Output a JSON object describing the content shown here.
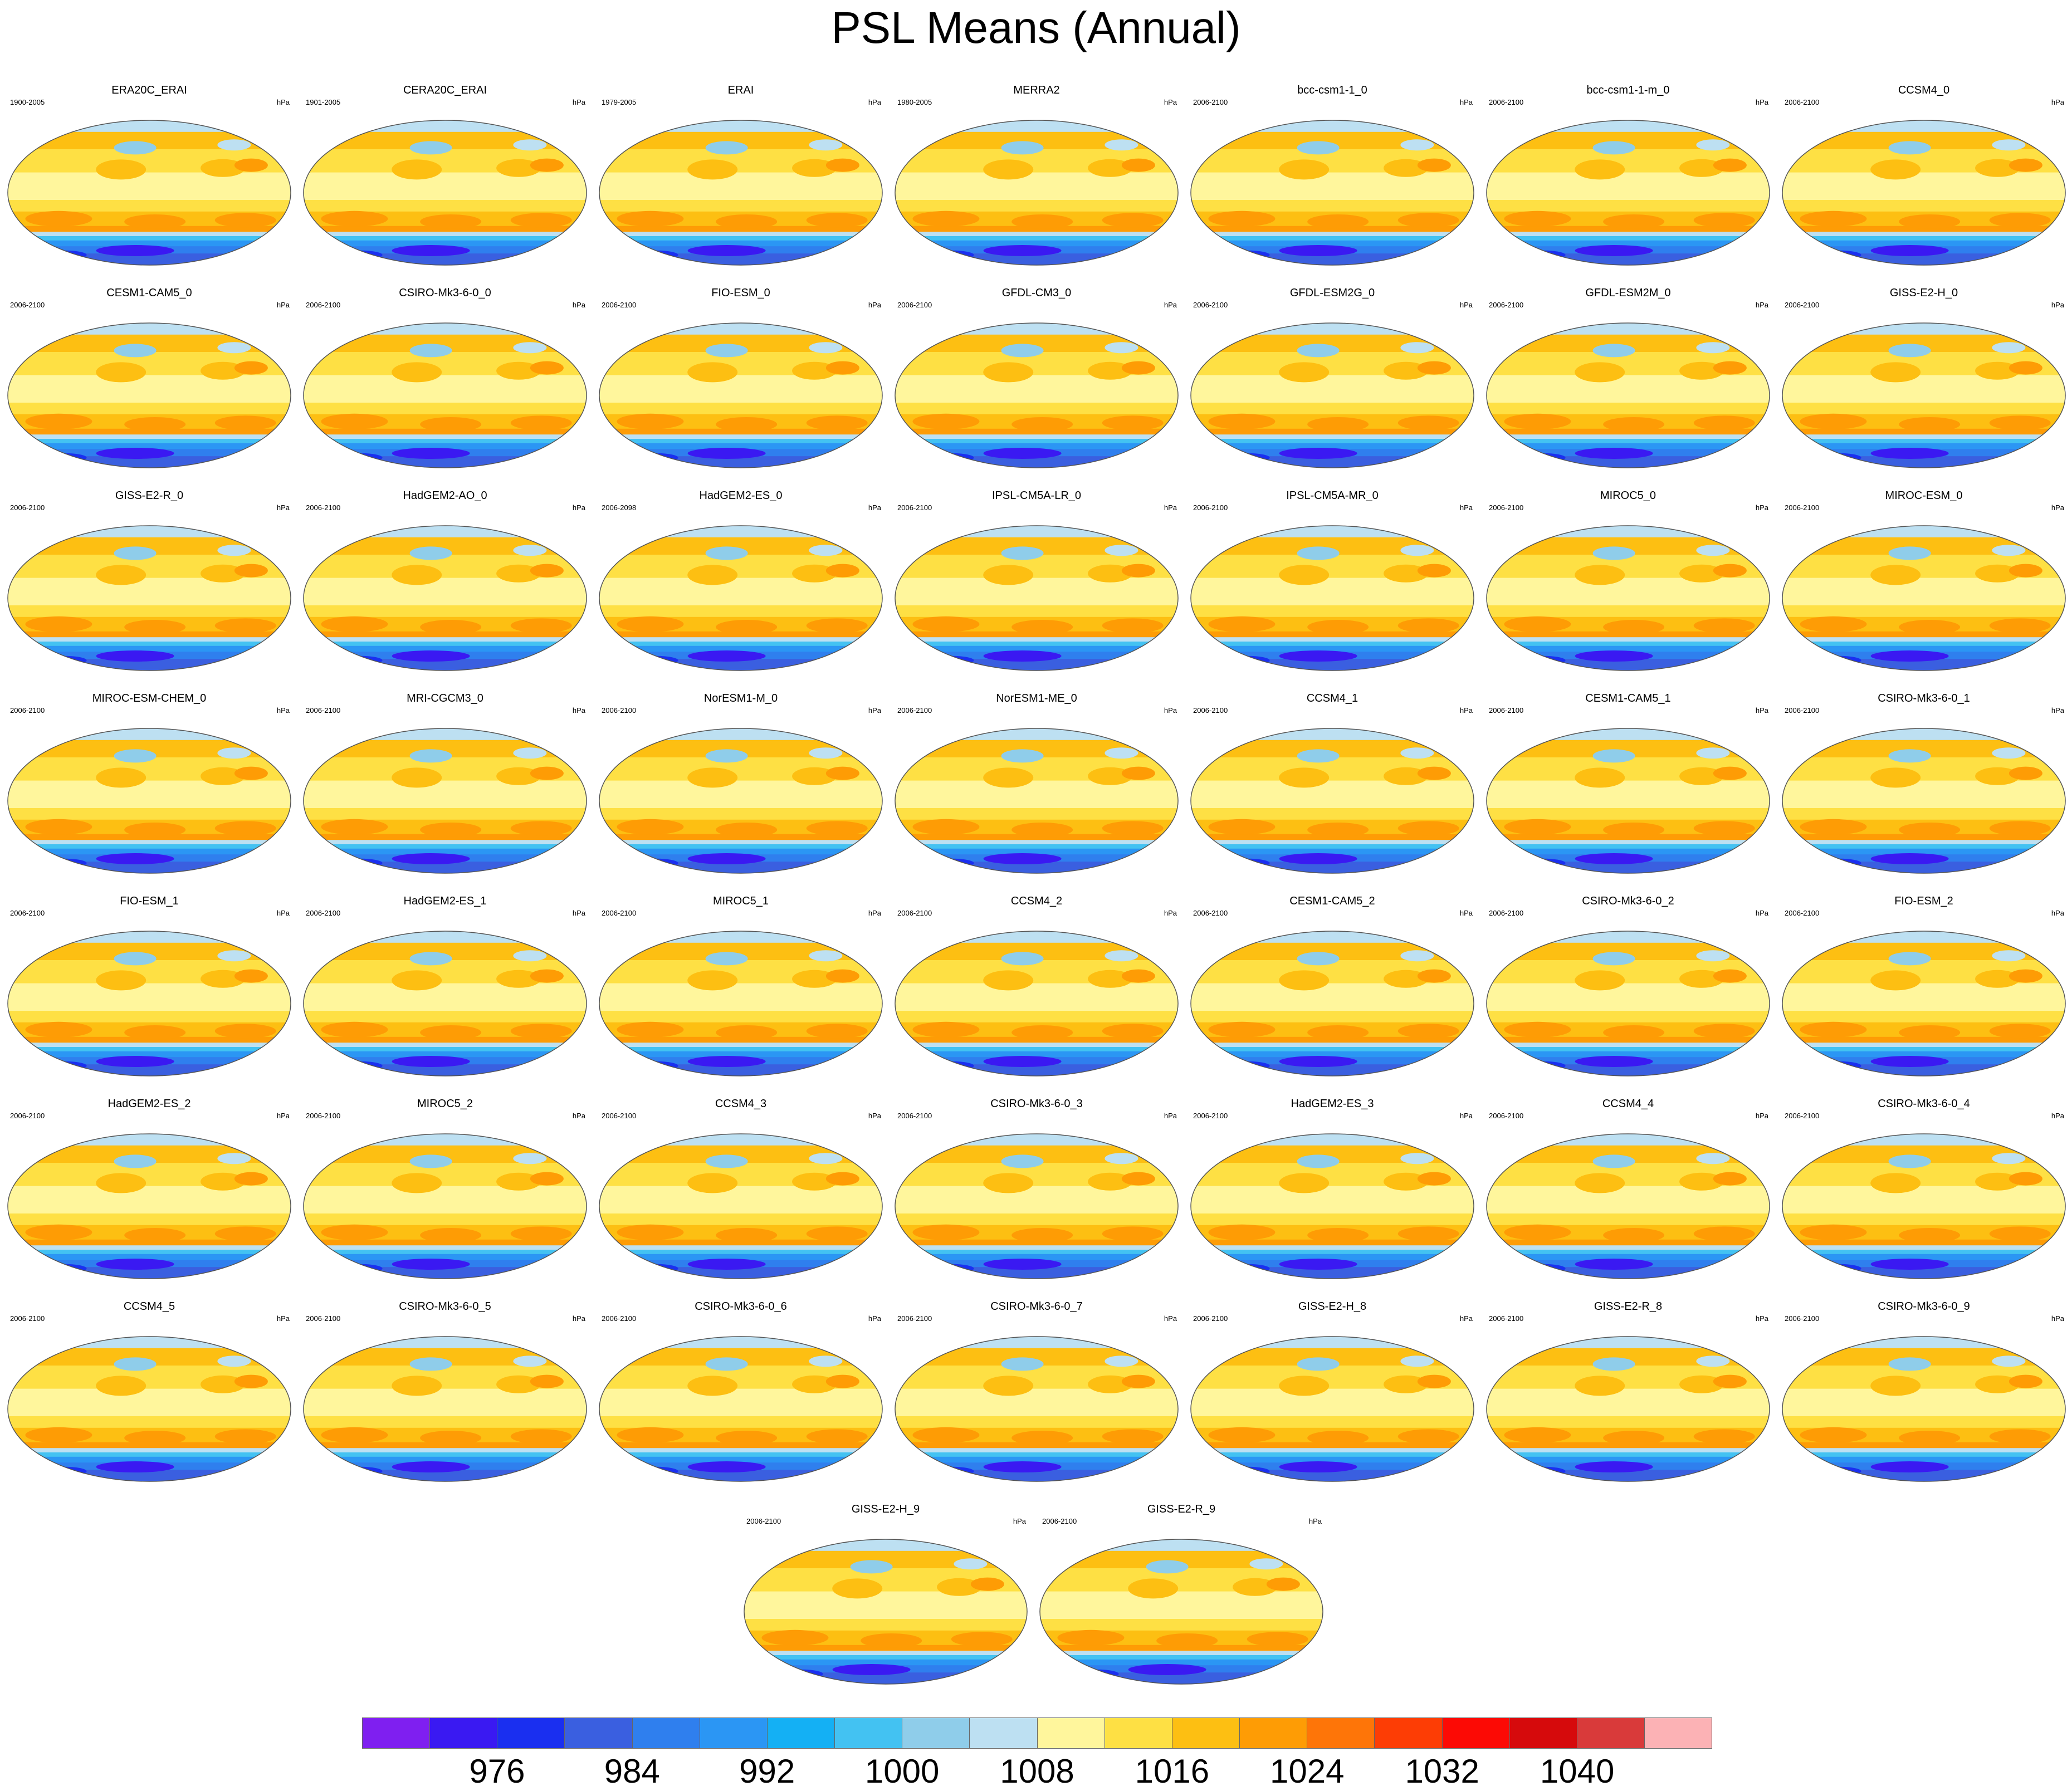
{
  "title": "PSL Means (Annual)",
  "units": "hPa",
  "panels": [
    {
      "name": "ERA20C_ERAI",
      "years": "1900-2005"
    },
    {
      "name": "CERA20C_ERAI",
      "years": "1901-2005"
    },
    {
      "name": "ERAI",
      "years": "1979-2005"
    },
    {
      "name": "MERRA2",
      "years": "1980-2005"
    },
    {
      "name": "bcc-csm1-1_0",
      "years": "2006-2100"
    },
    {
      "name": "bcc-csm1-1-m_0",
      "years": "2006-2100"
    },
    {
      "name": "CCSM4_0",
      "years": "2006-2100"
    },
    {
      "name": "CESM1-CAM5_0",
      "years": "2006-2100"
    },
    {
      "name": "CSIRO-Mk3-6-0_0",
      "years": "2006-2100"
    },
    {
      "name": "FIO-ESM_0",
      "years": "2006-2100"
    },
    {
      "name": "GFDL-CM3_0",
      "years": "2006-2100"
    },
    {
      "name": "GFDL-ESM2G_0",
      "years": "2006-2100"
    },
    {
      "name": "GFDL-ESM2M_0",
      "years": "2006-2100"
    },
    {
      "name": "GISS-E2-H_0",
      "years": "2006-2100"
    },
    {
      "name": "GISS-E2-R_0",
      "years": "2006-2100"
    },
    {
      "name": "HadGEM2-AO_0",
      "years": "2006-2100"
    },
    {
      "name": "HadGEM2-ES_0",
      "years": "2006-2098"
    },
    {
      "name": "IPSL-CM5A-LR_0",
      "years": "2006-2100"
    },
    {
      "name": "IPSL-CM5A-MR_0",
      "years": "2006-2100"
    },
    {
      "name": "MIROC5_0",
      "years": "2006-2100"
    },
    {
      "name": "MIROC-ESM_0",
      "years": "2006-2100"
    },
    {
      "name": "MIROC-ESM-CHEM_0",
      "years": "2006-2100"
    },
    {
      "name": "MRI-CGCM3_0",
      "years": "2006-2100"
    },
    {
      "name": "NorESM1-M_0",
      "years": "2006-2100"
    },
    {
      "name": "NorESM1-ME_0",
      "years": "2006-2100"
    },
    {
      "name": "CCSM4_1",
      "years": "2006-2100"
    },
    {
      "name": "CESM1-CAM5_1",
      "years": "2006-2100"
    },
    {
      "name": "CSIRO-Mk3-6-0_1",
      "years": "2006-2100"
    },
    {
      "name": "FIO-ESM_1",
      "years": "2006-2100"
    },
    {
      "name": "HadGEM2-ES_1",
      "years": "2006-2100"
    },
    {
      "name": "MIROC5_1",
      "years": "2006-2100"
    },
    {
      "name": "CCSM4_2",
      "years": "2006-2100"
    },
    {
      "name": "CESM1-CAM5_2",
      "years": "2006-2100"
    },
    {
      "name": "CSIRO-Mk3-6-0_2",
      "years": "2006-2100"
    },
    {
      "name": "FIO-ESM_2",
      "years": "2006-2100"
    },
    {
      "name": "HadGEM2-ES_2",
      "years": "2006-2100"
    },
    {
      "name": "MIROC5_2",
      "years": "2006-2100"
    },
    {
      "name": "CCSM4_3",
      "years": "2006-2100"
    },
    {
      "name": "CSIRO-Mk3-6-0_3",
      "years": "2006-2100"
    },
    {
      "name": "HadGEM2-ES_3",
      "years": "2006-2100"
    },
    {
      "name": "CCSM4_4",
      "years": "2006-2100"
    },
    {
      "name": "CSIRO-Mk3-6-0_4",
      "years": "2006-2100"
    },
    {
      "name": "CCSM4_5",
      "years": "2006-2100"
    },
    {
      "name": "CSIRO-Mk3-6-0_5",
      "years": "2006-2100"
    },
    {
      "name": "CSIRO-Mk3-6-0_6",
      "years": "2006-2100"
    },
    {
      "name": "CSIRO-Mk3-6-0_7",
      "years": "2006-2100"
    },
    {
      "name": "GISS-E2-H_8",
      "years": "2006-2100"
    },
    {
      "name": "GISS-E2-R_8",
      "years": "2006-2100"
    },
    {
      "name": "CSIRO-Mk3-6-0_9",
      "years": "2006-2100"
    },
    {
      "name": "GISS-E2-H_9",
      "years": "2006-2100"
    },
    {
      "name": "GISS-E2-R_9",
      "years": "2006-2100"
    }
  ],
  "colorbar": {
    "colors": [
      "#7f1ff0",
      "#3a19f2",
      "#1a2ff0",
      "#3a5fe0",
      "#2f7fee",
      "#2b96f4",
      "#14b0f4",
      "#43c2f2",
      "#8fcdea",
      "#bde0f2",
      "#fff69c",
      "#fee044",
      "#fdbf12",
      "#fe9c05",
      "#fe7508",
      "#fd3d05",
      "#fc0a05",
      "#d60a0c",
      "#d93a3a",
      "#fcb2b5"
    ],
    "labels": [
      "976",
      "984",
      "992",
      "1000",
      "1008",
      "1016",
      "1024",
      "1032",
      "1040"
    ]
  }
}
